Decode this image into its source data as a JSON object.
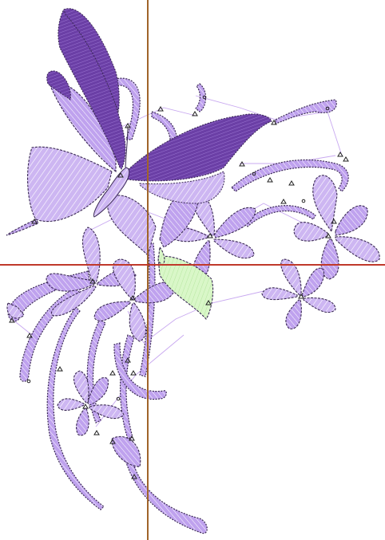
{
  "canvas": {
    "background": "#ffffff"
  },
  "colors": {
    "petal_fill": "#cdb6f2",
    "petal_fill_alt": "#bfa2ee",
    "petal_stitch": "#ffffff",
    "outline": "#3b2a55",
    "wing_dark": "#6b3fa6",
    "wing_dark_stitch": "#9b75d2",
    "wing_light": "#c9adf5",
    "leaf_fill": "#d9f7c8",
    "leaf_stitch": "#b6e6a0",
    "travel_line": "#c8a8f0",
    "guide_vertical": "#a0642a",
    "guide_horizontal": "#c0392b",
    "node_marker": "#222222"
  },
  "design": {
    "motif": "butterfly-with-flowers",
    "element_icons": [
      "butterfly-icon",
      "flower-icon",
      "leaf-icon",
      "stem-icon"
    ]
  }
}
